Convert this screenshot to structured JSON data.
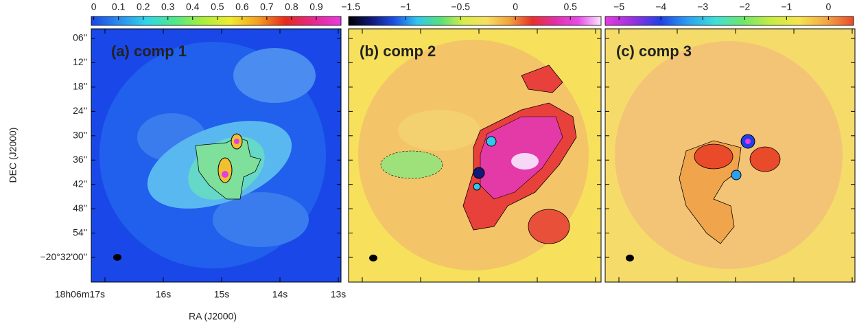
{
  "panels": [
    {
      "title": "(a) comp 1",
      "title_color": "#e448e0",
      "colorbar": {
        "lim": [
          -0.01,
          1.0
        ],
        "ticks": [
          0,
          0.1,
          0.2,
          0.3,
          0.4,
          0.5,
          0.6,
          0.7,
          0.8,
          0.9
        ],
        "colors": [
          "#1846e6",
          "#2a8cf0",
          "#2fd6e8",
          "#4ee88a",
          "#a8ef3c",
          "#f0ec2e",
          "#f5a020",
          "#e8281c",
          "#e62890",
          "#e83ae0"
        ]
      }
    },
    {
      "title": "(b) comp 2",
      "title_color": "#000000",
      "colorbar": {
        "lim": [
          -1.52,
          0.78
        ],
        "ticks": [
          {
            "value": -1.5,
            "label": "−1.5"
          },
          {
            "value": -1,
            "label": "−1"
          },
          {
            "value": -0.5,
            "label": "−0.5"
          },
          0,
          0.5
        ],
        "colors": [
          "#000000",
          "#101878",
          "#1c50e8",
          "#30c8ee",
          "#58e07a",
          "#d8ec4a",
          "#f6e064",
          "#f3a23c",
          "#e8302a",
          "#e42ea8",
          "#e84ae8",
          "#fbe6fb"
        ]
      }
    },
    {
      "title": "(c) comp 3",
      "title_color": "#000000",
      "colorbar": {
        "lim": [
          -5.33,
          0.6
        ],
        "ticks": [
          {
            "value": -5,
            "label": "−5"
          },
          {
            "value": -4,
            "label": "−4"
          },
          {
            "value": -3,
            "label": "−3"
          },
          {
            "value": -2,
            "label": "−2"
          },
          {
            "value": -1,
            "label": "−1"
          },
          0
        ],
        "colors": [
          "#e83ae0",
          "#9a30e0",
          "#2040e8",
          "#2aa0f0",
          "#3ee0d8",
          "#6ee86a",
          "#c8ec44",
          "#f6e450",
          "#f4a844",
          "#e84a2a"
        ]
      }
    }
  ],
  "y_axis": {
    "label": "DEC (J2000)",
    "ticks": [
      "06''",
      "12''",
      "18''",
      "24''",
      "30''",
      "36''",
      "42''",
      "48''",
      "54''",
      "−20°32'00''"
    ]
  },
  "x_axis": {
    "label": "RA (J2000)",
    "ticks": [
      "18h06m17s",
      "16s",
      "15s",
      "14s",
      "13s"
    ]
  }
}
